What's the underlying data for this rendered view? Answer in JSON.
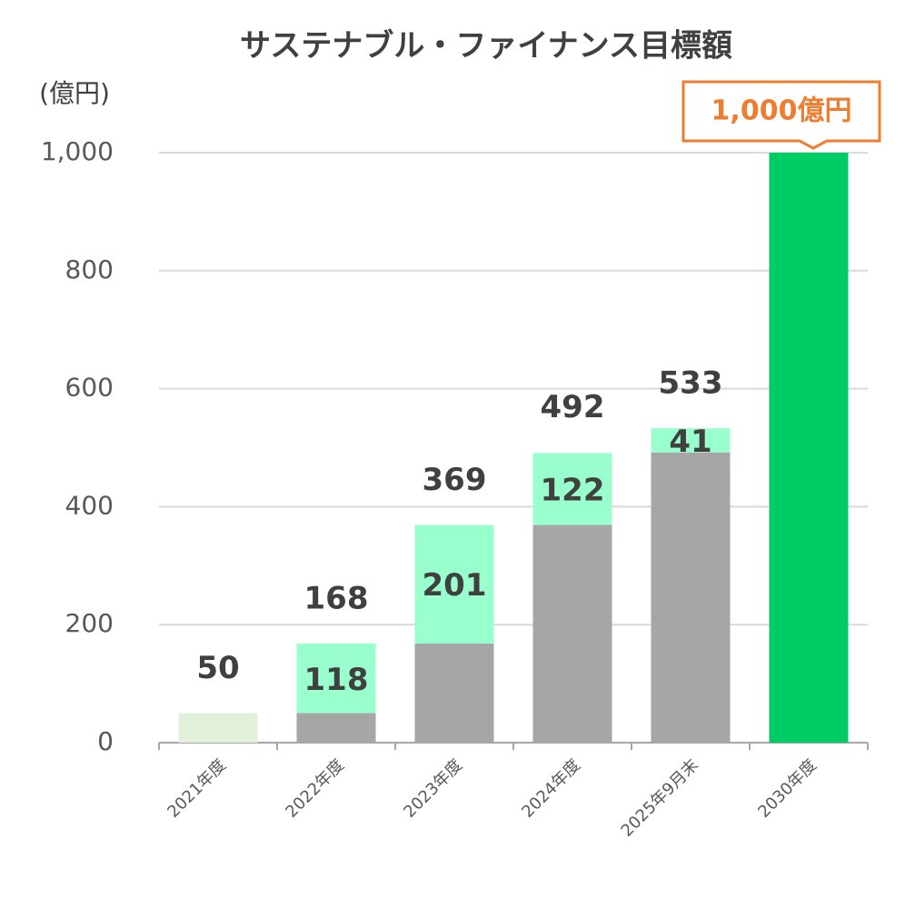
{
  "chart_data": {
    "type": "stacked_bar",
    "title": "サステナブル・ファイナンス目標額",
    "y_axis_label": "(億円)",
    "categories": [
      "2021年度",
      "2022年度",
      "2023年度",
      "2024年度",
      "2025年9月末",
      "2030年度"
    ],
    "series": [
      {
        "color": "#a6a6a6",
        "values": [
          null,
          50,
          168,
          369,
          492,
          null
        ]
      },
      {
        "color": "#99ffcc",
        "values": [
          null,
          118,
          201,
          122,
          41,
          null
        ],
        "show_labels": true
      },
      {
        "color": "#e2efd9",
        "values": [
          50,
          null,
          null,
          null,
          null,
          null
        ]
      },
      {
        "color": "#00cc66",
        "values": [
          null,
          null,
          null,
          null,
          null,
          1000
        ]
      }
    ],
    "totals": [
      50,
      168,
      369,
      492,
      533,
      null
    ],
    "annotation": "1,000億円",
    "ylim": [
      0,
      1000
    ],
    "yticks": [
      0,
      200,
      400,
      600,
      800,
      {
        "value": 1000,
        "label": "1,000"
      }
    ],
    "grid": true
  }
}
